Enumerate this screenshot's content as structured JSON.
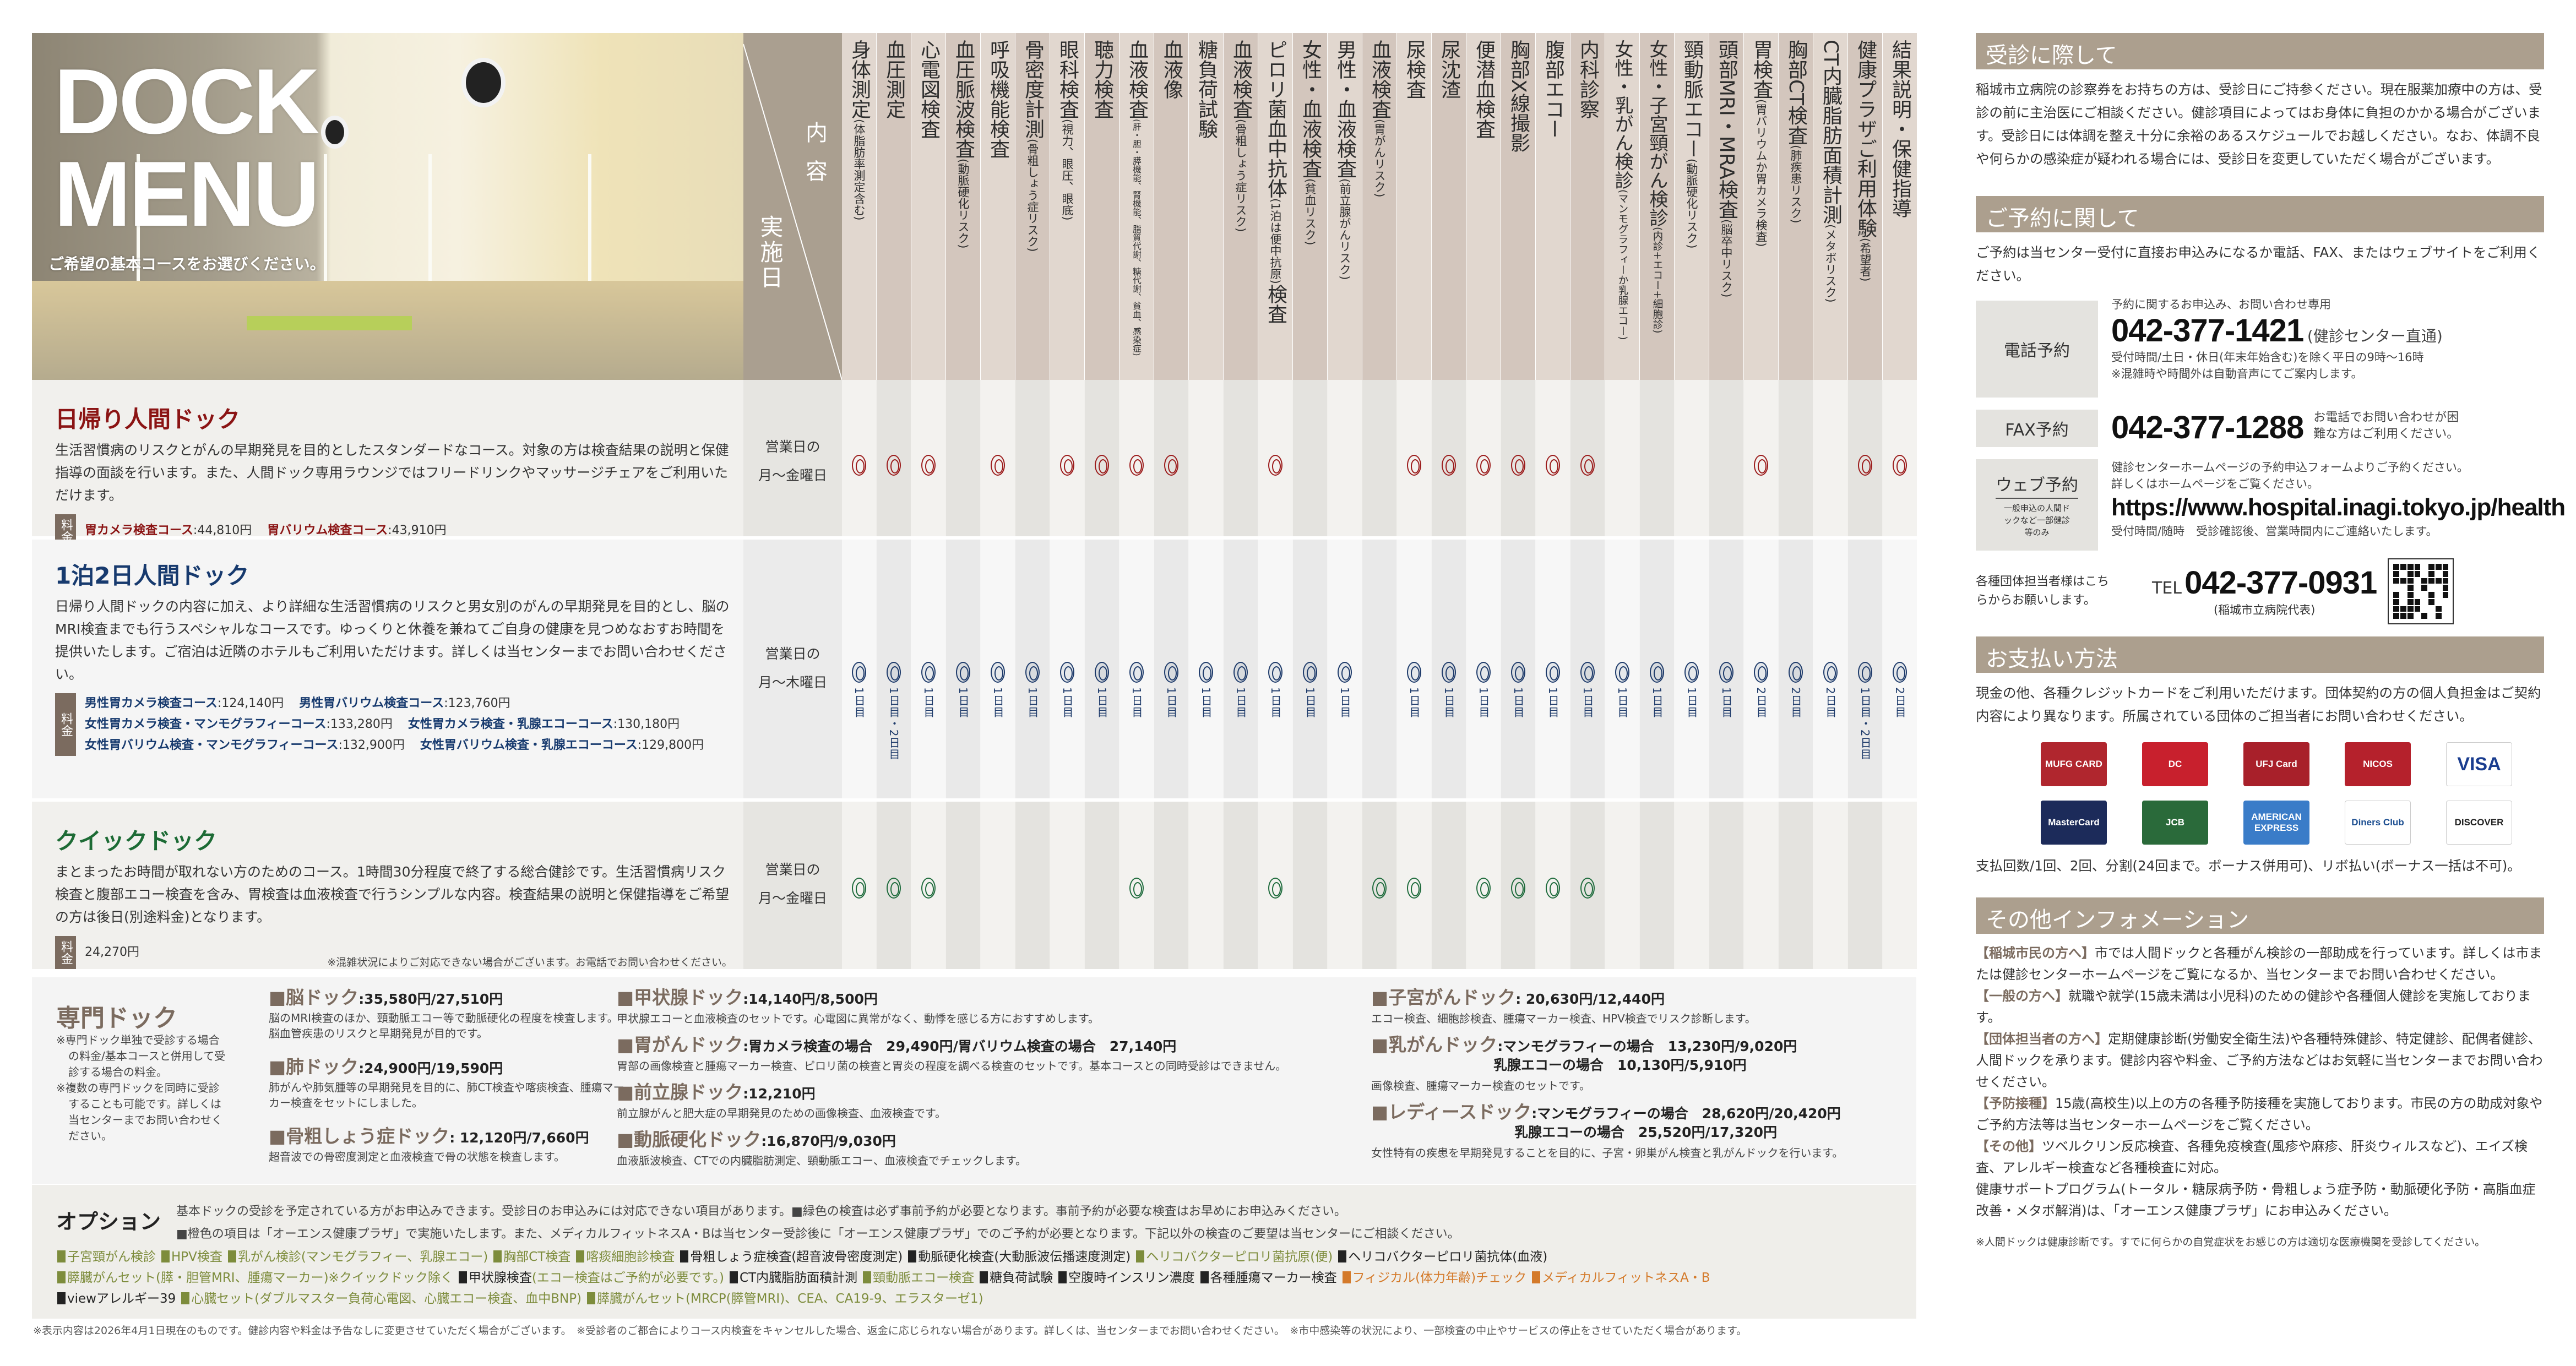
{
  "hero": {
    "title_line1": "DOCK",
    "title_line2": "MENU",
    "subtitle": "ご希望の基本コースをお選びください。"
  },
  "header": {
    "content_label": "内容",
    "date_label": "実施日"
  },
  "columns": [
    {
      "main": "身体測定",
      "sub": "(体脂肪率測定含む)"
    },
    {
      "main": "血圧測定",
      "sub": ""
    },
    {
      "main": "心電図検査",
      "sub": ""
    },
    {
      "main": "血圧脈波検査",
      "sub": "(動脈硬化リスク)"
    },
    {
      "main": "呼吸機能検査",
      "sub": ""
    },
    {
      "main": "骨密度計測",
      "sub": "(骨粗しょう症リスク)"
    },
    {
      "main": "眼科検査",
      "sub": "(視力、眼圧、眼底)"
    },
    {
      "main": "聴力検査",
      "sub": ""
    },
    {
      "main": "血液検査",
      "sub": "(肝・胆・膵機能、腎機能、脂質代謝、糖代謝、貧血、感染症)"
    },
    {
      "main": "血液像",
      "sub": ""
    },
    {
      "main": "糖負荷試験",
      "sub": ""
    },
    {
      "main": "血液検査",
      "sub": "(骨粗しょう症リスク)"
    },
    {
      "main": "ピロリ菌血中抗体",
      "sub": "(1泊は便中抗原)",
      "after": "検査"
    },
    {
      "main": "女性・血液検査",
      "sub": "(貧血リスク)"
    },
    {
      "main": "男性・血液検査",
      "sub": "(前立腺がんリスク)"
    },
    {
      "main": "血液検査",
      "sub": "(胃がんリスク)"
    },
    {
      "main": "尿検査",
      "sub": ""
    },
    {
      "main": "尿沈渣",
      "sub": ""
    },
    {
      "main": "便潜血検査",
      "sub": ""
    },
    {
      "main": "胸部X線撮影",
      "sub": ""
    },
    {
      "main": "腹部エコー",
      "sub": ""
    },
    {
      "main": "内科診察",
      "sub": ""
    },
    {
      "main": "女性・乳がん検診",
      "sub": "(マンモグラフィーか乳腺エコー)"
    },
    {
      "main": "女性・子宮頸がん検診",
      "sub": "(内診+エコー+細胞診)"
    },
    {
      "main": "頸動脈エコー",
      "sub": "(動脈硬化リスク)"
    },
    {
      "main": "頭部MRI・MRA検査",
      "sub": "(脳卒中リスク)"
    },
    {
      "main": "胃検査",
      "sub": "(胃バリウムか胃カメラ検査)"
    },
    {
      "main": "胸部CT検査",
      "sub": "(肺疾患リスク)"
    },
    {
      "main": "CT内臓脂肪面積計測",
      "sub": "(メタボリスク)"
    },
    {
      "main": "健康プラザご利用体験",
      "sub": "(希望者)"
    },
    {
      "main": "結果説明・保健指導",
      "sub": ""
    }
  ],
  "courses": [
    {
      "title": "日帰り人間ドック",
      "color": "#8b1414",
      "mark_color": "#9b1b1b",
      "description": "生活習慣病のリスクとがんの早期発見を目的としたスタンダードなコース。対象の方は検査結果の説明と保健指導の面談を行います。また、人間ドック専用ラウンジではフリードリンクやマッサージチェアをご利用いただけます。",
      "fee_label": "料金",
      "fees": [
        [
          {
            "name": "胃カメラ検査コース",
            "price": ":44,810円"
          },
          {
            "name": "胃バリウム検査コース",
            "price": ":43,910円"
          }
        ]
      ],
      "days_line1": "営業日の",
      "days_line2": "月〜金曜日",
      "marks": [
        "",
        "",
        "",
        null,
        "",
        null,
        "",
        "",
        "",
        "",
        null,
        null,
        "",
        null,
        null,
        null,
        "",
        "",
        "",
        "",
        "",
        "",
        null,
        null,
        null,
        null,
        "",
        null,
        null,
        "",
        ""
      ]
    },
    {
      "title": "1泊2日人間ドック",
      "color": "#173a6e",
      "mark_color": "#1d3a6a",
      "description": "日帰り人間ドックの内容に加え、より詳細な生活習慣病のリスクと男女別のがんの早期発見を目的とし、脳のMRI検査までも行うスペシャルなコースです。ゆっくりと休養を兼ねてご自身の健康を見つめなおすお時間を提供いたします。ご宿泊は近隣のホテルもご利用いただけます。詳しくは当センターまでお問い合わせください。",
      "fee_label": "料金",
      "fees": [
        [
          {
            "name": "男性胃カメラ検査コース",
            "price": ":124,140円"
          },
          {
            "name": "男性胃バリウム検査コース",
            "price": ":123,760円"
          }
        ],
        [
          {
            "name": "女性胃カメラ検査・マンモグラフィーコース",
            "price": ":133,280円"
          },
          {
            "name": "女性胃カメラ検査・乳腺エコーコース",
            "price": ":130,180円"
          }
        ],
        [
          {
            "name": "女性胃バリウム検査・マンモグラフィーコース",
            "price": ":132,900円"
          },
          {
            "name": "女性胃バリウム検査・乳腺エコーコース",
            "price": ":129,800円"
          }
        ]
      ],
      "days_line1": "営業日の",
      "days_line2": "月〜木曜日",
      "marks": [
        "1日目",
        "1日目・2日目",
        "1日目",
        "1日目",
        "1日目",
        "1日目",
        "1日目",
        "1日目",
        "1日目",
        "1日目",
        "1日目",
        "1日目",
        "1日目",
        "1日目",
        "1日目",
        null,
        "1日目",
        "1日目",
        "1日目",
        "1日目",
        "1日目",
        "1日目",
        "1日目",
        "1日目",
        "1日目",
        "1日目",
        "2日目",
        "2日目",
        "2日目",
        "1日目・2日目",
        "2日目"
      ]
    },
    {
      "title": "クイックドック",
      "color": "#1d6b35",
      "mark_color": "#1e6b3c",
      "description": "まとまったお時間が取れない方のためのコース。1時間30分程度で終了する総合健診です。生活習慣病リスク検査と腹部エコー検査を含み、胃検査は血液検査で行うシンプルな内容。検査結果の説明と保健指導をご希望の方は後日(別途料金)となります。",
      "fee_label": "料金",
      "fees": [
        [
          {
            "name": "",
            "price": "24,270円"
          }
        ]
      ],
      "note": "※混雑状況によりご対応できない場合がございます。お電話でお問い合わせください。",
      "days_line1": "営業日の",
      "days_line2": "月〜金曜日",
      "marks": [
        "",
        "",
        "",
        null,
        null,
        null,
        null,
        null,
        "",
        null,
        null,
        null,
        "",
        null,
        null,
        "",
        "",
        null,
        "",
        "",
        "",
        "",
        null,
        null,
        null,
        null,
        null,
        null,
        null,
        null,
        null
      ]
    }
  ],
  "special": {
    "title": "専門ドック",
    "notes": [
      "※専門ドック単独で受診する場合の料金/基本コースと併用して受診する場合の料金。",
      "※複数の専門ドックを同時に受診することも可能です。詳しくは当センターまでお問い合わせください。"
    ],
    "items": [
      {
        "name": "■脳ドック",
        "price": ":35,580円/27,510円",
        "desc": "脳のMRI検査のほか、頸動脈エコー等で動脈硬化の程度を検査します。脳血管疾患のリスクと早期発見が目的です。"
      },
      {
        "name": "■肺ドック",
        "price": ":24,900円/19,590円",
        "desc": "肺がんや肺気腫等の早期発見を目的に、肺CT検査や喀痰検査、腫瘍マーカー検査をセットにしました。"
      },
      {
        "name": "■骨粗しょう症ドック",
        "price": ": 12,120円/7,660円",
        "desc": "超音波での骨密度測定と血液検査で骨の状態を検査します。"
      },
      {
        "name": "■甲状腺ドック",
        "price": ":14,140円/8,500円",
        "desc": "甲状腺エコーと血液検査のセットです。心電図に異常がなく、動悸を感じる方におすすめします。"
      },
      {
        "name": "■胃がんドック",
        "price": ":胃カメラ検査の場合　29,490円/胃バリウム検査の場合　27,140円",
        "desc": "胃部の画像検査と腫瘍マーカー検査、ピロリ菌の検査と胃炎の程度を調べる検査のセットです。基本コースとの同時受診はできません。"
      },
      {
        "name": "■前立腺ドック",
        "price": ":12,210円",
        "desc": "前立腺がんと肥大症の早期発見のための画像検査、血液検査です。"
      },
      {
        "name": "■動脈硬化ドック",
        "price": ":16,870円/9,030円",
        "desc": "血液脈波検査、CTでの内臓脂肪測定、頸動脈エコー、血液検査でチェックします。"
      },
      {
        "name": "■子宮がんドック",
        "price": ": 20,630円/12,440円",
        "desc": "エコー検査、細胞診検査、腫瘍マーカー検査、HPV検査でリスク診断します。"
      },
      {
        "name": "■乳がんドック",
        "price": ":マンモグラフィーの場合　13,230円/9,020円",
        "price2": "乳腺エコーの場合　10,130円/5,910円",
        "desc": "画像検査、腫瘍マーカー検査のセットです。"
      },
      {
        "name": "■レディースドック",
        "price": ":マンモグラフィーの場合　28,620円/20,420円",
        "price2": "乳腺エコーの場合　25,520円/17,320円",
        "desc": "女性特有の疾患を早期発見することを目的に、子宮・卵巣がん検査と乳がんドックを行います。"
      }
    ]
  },
  "options": {
    "title": "オプション",
    "intro1": "基本ドックの受診を予定されている方がお申込みできます。受診日のお申込みには対応できない項目があります。■緑色の検査は必ず事前予約が必要となります。事前予約が必要な検査はお早めにお申込みください。",
    "intro2": "■橙色の項目は「オーエンス健康プラザ」で実施いたします。また、メディカルフィットネスA・Bは当センター受診後に「オーエンス健康プラザ」でのご予約が必要となります。下記以外の検査のご要望は当センターにご相談ください。",
    "colors": {
      "green": "#7d8c3c",
      "black": "#222222",
      "orange": "#d47a2a"
    },
    "items": [
      {
        "label": "子宮頸がん検診",
        "color": "green"
      },
      {
        "label": "HPV検査",
        "color": "green"
      },
      {
        "label": "乳がん検診(マンモグラフィー、乳腺エコー)",
        "color": "green"
      },
      {
        "label": "胸部CT検査",
        "color": "green"
      },
      {
        "label": "喀痰細胞診検査",
        "color": "green"
      },
      {
        "label": "骨粗しょう症検査(超音波骨密度測定)",
        "color": "black"
      },
      {
        "label": "動脈硬化検査(大動脈波伝播速度測定)",
        "color": "black"
      },
      {
        "label": "ヘリコバクターピロリ菌抗原(便)",
        "color": "green"
      },
      {
        "label": "ヘリコバクターピロリ菌抗体(血液)",
        "color": "black"
      },
      {
        "label": "膵臓がんセット(膵・胆管MRI、腫瘍マーカー)※クイックドック除く",
        "color": "green"
      },
      {
        "label": "甲状腺検査",
        "color": "black",
        "suffix": "(エコー検査はご予約が必要です。)"
      },
      {
        "label": "CT内臓脂肪面積計測",
        "color": "black"
      },
      {
        "label": "頸動脈エコー検査",
        "color": "green"
      },
      {
        "label": "糖負荷試験",
        "color": "black"
      },
      {
        "label": "空腹時インスリン濃度",
        "color": "black"
      },
      {
        "label": "各種腫瘍マーカー検査",
        "color": "black"
      },
      {
        "label": "フィジカル(体力年齢)チェック",
        "color": "orange"
      },
      {
        "label": "メディカルフィットネスA・B",
        "color": "orange"
      },
      {
        "label": "viewアレルギー39",
        "color": "black"
      },
      {
        "label": "心臓セット(ダブルマスター負荷心電図、心臓エコー検査、血中BNP)",
        "color": "green"
      },
      {
        "label": "膵臓がんセット(MRCP(膵管MRI)、CEA、CA19-9、エラスターゼ1)",
        "color": "green"
      }
    ]
  },
  "footnote": "※表示内容は2026年4月1日現在のものです。健診内容や料金は予告なしに変更させていただく場合がございます。　※受診者のご都合によりコース内検査をキャンセルした場合、返金に応じられない場合があります。詳しくは、当センターまでお問い合わせください。　※市中感染等の状況により、一部検査の中止やサービスの停止をさせていただく場合があります。",
  "right": {
    "visit": {
      "title": "受診に際して",
      "text": "稲城市立病院の診察券をお持ちの方は、受診日にご持参ください。現在服薬加療中の方は、受診の前に主治医にご相談ください。健診項目によってはお身体に負担のかかる場合がございます。受診日には体調を整え十分に余裕のあるスケジュールでお越しください。なお、体調不良や何らかの感染症が疑われる場合には、受診日を変更していただく場合がございます。"
    },
    "reserve": {
      "title": "ご予約に関して",
      "text": "ご予約は当センター受付に直接お申込みになるか電話、FAX、またはウェブサイトをご利用ください。",
      "phone": {
        "label": "電話予約",
        "note_top": "予約に関するお申込み、お問い合わせ専用",
        "number": "042-377-1421",
        "number_note": "(健診センター直通)",
        "hours": "受付時間/土日・休日(年末年始含む)を除く平日の9時〜16時",
        "hours_note": "※混雑時や時間外は自動音声にてご案内します。"
      },
      "fax": {
        "label": "FAX予約",
        "number": "042-377-1288",
        "note": "お電話でお問い合わせが困難な方はご利用ください。"
      },
      "web": {
        "label": "ウェブ予約",
        "sublabel": "一般申込の人間ドックなど一部健診等のみ",
        "text1": "健診センターホームページの予約申込フォームよりご予約ください。",
        "text2": "詳しくはホームページをご覧ください。",
        "url": "https://www.hospital.inagi.tokyo.jp/health",
        "hours": "受付時間/随時　受診確認後、営業時間内にご連絡いたします。"
      },
      "group": {
        "text": "各種団体担当者様はこちらからお願いします。",
        "tel_label": "TEL",
        "number": "042-377-0931",
        "number_note": "(稲城市立病院代表)"
      }
    },
    "payment": {
      "title": "お支払い方法",
      "text": "現金の他、各種クレジットカードをご利用いただけます。団体契約の方の個人負担金はご契約内容により異なります。所属されている団体のご担当者にお問い合わせください。",
      "cards": [
        {
          "name": "MUFG CARD",
          "bg": "#b0262e"
        },
        {
          "name": "DC",
          "bg": "#c8202d"
        },
        {
          "name": "UFJ Card",
          "bg": "#a8202a"
        },
        {
          "name": "NICOS",
          "bg": "#b5212c"
        },
        {
          "name": "VISA",
          "bg": "#ffffff",
          "fg": "#1a3d8f"
        },
        {
          "name": "MasterCard",
          "bg": "#1c2b5a"
        },
        {
          "name": "JCB",
          "bg": "#2a6a3a"
        },
        {
          "name": "AMERICAN EXPRESS",
          "bg": "#3a7cc8"
        },
        {
          "name": "Diners Club",
          "bg": "#ffffff",
          "fg": "#1d4f91"
        },
        {
          "name": "DISCOVER",
          "bg": "#ffffff",
          "fg": "#222222"
        }
      ],
      "count": "支払回数/1回、2回、分割(24回まで。ボーナス併用可)、リボ払い(ボーナス一括は不可)。"
    },
    "other": {
      "title": "その他インフォメーション",
      "items": [
        {
          "head": "【稲城市民の方へ】",
          "text": "市では人間ドックと各種がん検診の一部助成を行っています。詳しくは市または健診センターホームページをご覧になるか、当センターまでお問い合わせください。"
        },
        {
          "head": "【一般の方へ】",
          "text": "就職や就学(15歳未満は小児科)のための健診や各種個人健診を実施しております。"
        },
        {
          "head": "【団体担当者の方へ】",
          "text": "定期健康診断(労働安全衛生法)や各種特殊健診、特定健診、配偶者健診、人間ドックを承ります。健診内容や料金、ご予約方法などはお気軽に当センターまでお問い合わせください。"
        },
        {
          "head": "【予防接種】",
          "text": "15歳(高校生)以上の方の各種予防接種を実施しております。市民の方の助成対象やご予約方法等は当センターホームページをご覧ください。"
        },
        {
          "head": "【その他】",
          "text": "ツベルクリン反応検査、各種免疫検査(風疹や麻疹、肝炎ウィルスなど)、エイズ検査、アレルギー検査など各種検査に対応。"
        },
        {
          "head": "",
          "text": "健康サポートプログラム(トータル・糖尿病予防・骨粗しょう症予防・動脈硬化予防・高脂血症改善・メタボ解消)は、「オーエンス健康プラザ」にお申込みください。"
        }
      ],
      "footnote": "※人間ドックは健康診断です。すでに何らかの自覚症状をお感じの方は適切な医療機関を受診してください。"
    }
  }
}
